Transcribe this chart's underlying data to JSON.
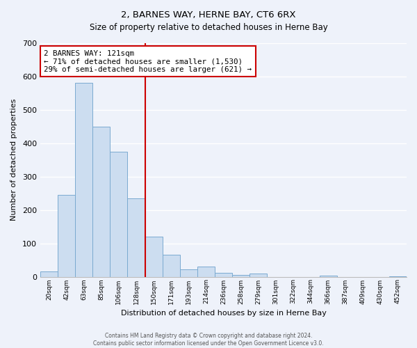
{
  "title": "2, BARNES WAY, HERNE BAY, CT6 6RX",
  "subtitle": "Size of property relative to detached houses in Herne Bay",
  "xlabel": "Distribution of detached houses by size in Herne Bay",
  "ylabel": "Number of detached properties",
  "bar_labels": [
    "20sqm",
    "42sqm",
    "63sqm",
    "85sqm",
    "106sqm",
    "128sqm",
    "150sqm",
    "171sqm",
    "193sqm",
    "214sqm",
    "236sqm",
    "258sqm",
    "279sqm",
    "301sqm",
    "322sqm",
    "344sqm",
    "366sqm",
    "387sqm",
    "409sqm",
    "430sqm",
    "452sqm"
  ],
  "bar_values": [
    15,
    245,
    580,
    450,
    375,
    235,
    120,
    65,
    22,
    30,
    12,
    5,
    10,
    0,
    0,
    0,
    3,
    0,
    0,
    0,
    2
  ],
  "bar_color": "#ccddf0",
  "bar_edge_color": "#7aaad0",
  "vline_x_idx": 5.5,
  "vline_color": "#cc0000",
  "annotation_title": "2 BARNES WAY: 121sqm",
  "annotation_line1": "← 71% of detached houses are smaller (1,530)",
  "annotation_line2": "29% of semi-detached houses are larger (621) →",
  "annotation_box_color": "#ffffff",
  "annotation_box_edge": "#cc0000",
  "ylim": [
    0,
    700
  ],
  "yticks": [
    0,
    100,
    200,
    300,
    400,
    500,
    600,
    700
  ],
  "footer1": "Contains HM Land Registry data © Crown copyright and database right 2024.",
  "footer2": "Contains public sector information licensed under the Open Government Licence v3.0.",
  "bg_color": "#eef2fa",
  "grid_color": "#ffffff",
  "title_fontsize": 9.5,
  "subtitle_fontsize": 8.5
}
